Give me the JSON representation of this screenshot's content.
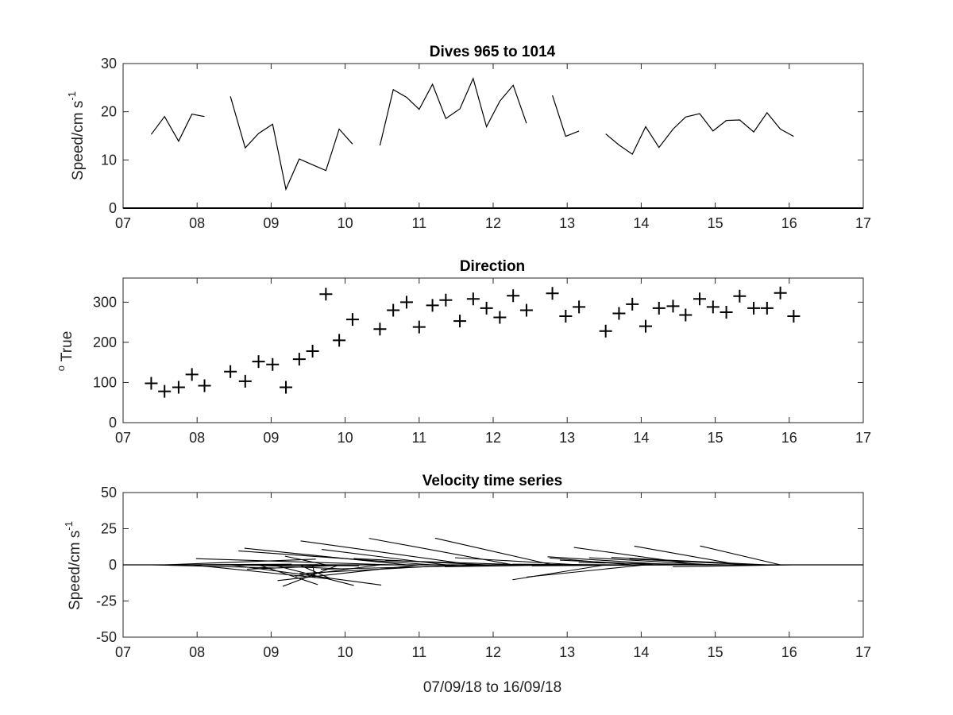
{
  "figure": {
    "xlabel": "07/09/18 to 16/09/18"
  },
  "chart_data": [
    {
      "type": "line",
      "title": "Dives 965 to 1014",
      "ylabel_main": "Speed/cm s",
      "ylabel_sup": "-1",
      "xlim": [
        7,
        17
      ],
      "ylim": [
        0,
        30
      ],
      "xticks": [
        "07",
        "08",
        "09",
        "10",
        "11",
        "12",
        "13",
        "14",
        "15",
        "16",
        "17"
      ],
      "yticks": [
        "0",
        "10",
        "20",
        "30"
      ],
      "segments": [
        {
          "x": [
            7.38,
            7.56,
            7.75,
            7.93,
            8.1
          ],
          "y": [
            15.3,
            19.0,
            13.9,
            19.5,
            19.0
          ]
        },
        {
          "x": [
            8.45,
            8.65,
            8.83,
            9.02,
            9.2,
            9.38,
            9.56,
            9.74,
            9.92,
            10.1
          ],
          "y": [
            23.2,
            12.5,
            15.5,
            17.4,
            3.9,
            10.2,
            9.0,
            7.8,
            16.4,
            13.3
          ]
        },
        {
          "x": [
            10.47,
            10.65,
            10.83,
            11.0,
            11.18,
            11.36,
            11.55,
            11.73,
            11.91,
            12.09,
            12.27,
            12.45
          ],
          "y": [
            13.0,
            24.6,
            23.0,
            20.5,
            25.7,
            18.6,
            20.6,
            26.9,
            16.9,
            22.2,
            25.5,
            17.6
          ]
        },
        {
          "x": [
            12.8,
            12.98,
            13.16
          ],
          "y": [
            23.4,
            14.9,
            16.0
          ]
        },
        {
          "x": [
            13.52,
            13.7,
            13.88,
            14.06,
            14.24,
            14.43,
            14.6,
            14.79,
            14.97,
            15.15,
            15.33,
            15.52,
            15.7,
            15.88,
            16.06
          ],
          "y": [
            15.4,
            13.1,
            11.2,
            16.9,
            12.6,
            16.4,
            18.9,
            19.6,
            16.0,
            18.2,
            18.3,
            15.8,
            19.8,
            16.4,
            14.9
          ]
        }
      ]
    },
    {
      "type": "scatter",
      "title": "Direction",
      "ylabel_sup": "o",
      "ylabel_main": " True",
      "xlim": [
        7,
        17
      ],
      "ylim": [
        0,
        360
      ],
      "xticks": [
        "07",
        "08",
        "09",
        "10",
        "11",
        "12",
        "13",
        "14",
        "15",
        "16",
        "17"
      ],
      "yticks": [
        "0",
        "100",
        "200",
        "300"
      ],
      "marker": "+",
      "x": [
        7.38,
        7.56,
        7.75,
        7.93,
        8.1,
        8.45,
        8.65,
        8.83,
        9.02,
        9.2,
        9.38,
        9.56,
        9.74,
        9.92,
        10.1,
        10.47,
        10.65,
        10.83,
        11.0,
        11.18,
        11.36,
        11.55,
        11.73,
        11.91,
        12.09,
        12.27,
        12.45,
        12.8,
        12.98,
        13.16,
        13.52,
        13.7,
        13.88,
        14.06,
        14.24,
        14.43,
        14.6,
        14.79,
        14.97,
        15.15,
        15.33,
        15.52,
        15.7,
        15.88,
        16.06
      ],
      "y": [
        98,
        78,
        88,
        120,
        92,
        127,
        103,
        152,
        145,
        88,
        158,
        178,
        320,
        205,
        257,
        233,
        280,
        300,
        238,
        292,
        305,
        253,
        308,
        285,
        262,
        316,
        280,
        322,
        265,
        288,
        228,
        272,
        295,
        240,
        285,
        290,
        268,
        308,
        288,
        275,
        315,
        285,
        285,
        323,
        265
      ]
    },
    {
      "type": "quiver",
      "title": "Velocity time series",
      "ylabel_main": "Speed/cm s",
      "ylabel_sup": "-1",
      "xlim": [
        7,
        17
      ],
      "ylim": [
        -50,
        50
      ],
      "xticks": [
        "07",
        "08",
        "09",
        "10",
        "11",
        "12",
        "13",
        "14",
        "15",
        "16",
        "17"
      ],
      "yticks": [
        "-50",
        "-25",
        "0",
        "25",
        "50"
      ],
      "note": "stick vectors drawn from baseline; speed from top panel, direction from middle panel (degrees true)"
    }
  ]
}
